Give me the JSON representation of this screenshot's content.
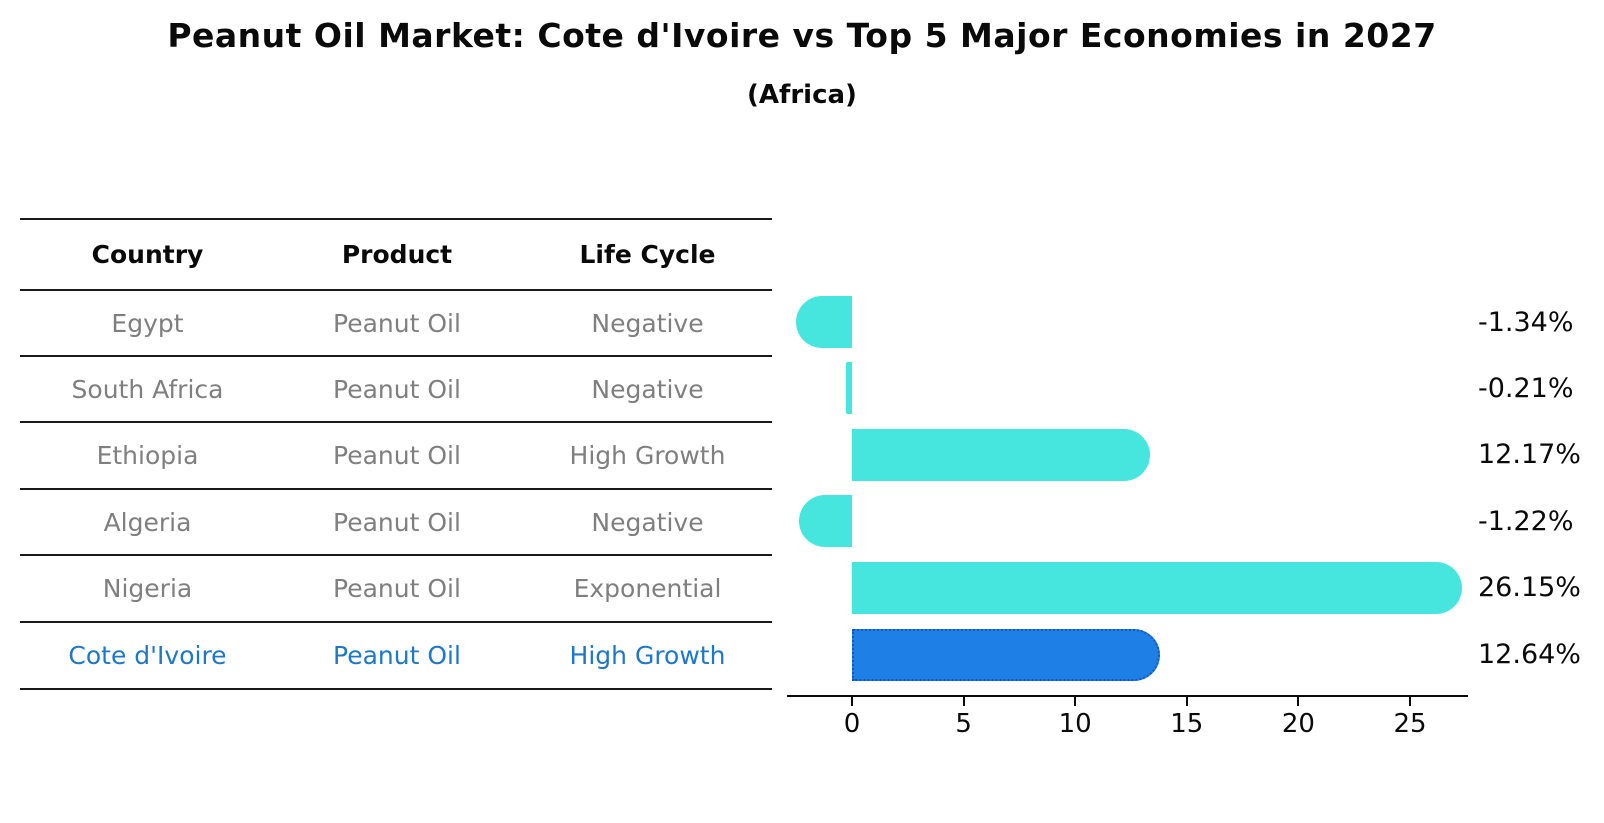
{
  "title": "Peanut Oil Market: Cote d'Ivoire vs Top 5 Major Economies in 2027",
  "subtitle": "(Africa)",
  "table": {
    "headers": [
      "Country",
      "Product",
      "Life Cycle"
    ],
    "rows": [
      {
        "country": "Egypt",
        "product": "Peanut Oil",
        "life_cycle": "Negative",
        "highlight": false
      },
      {
        "country": "South Africa",
        "product": "Peanut Oil",
        "life_cycle": "Negative",
        "highlight": false
      },
      {
        "country": "Ethiopia",
        "product": "Peanut Oil",
        "life_cycle": "High Growth",
        "highlight": false
      },
      {
        "country": "Algeria",
        "product": "Peanut Oil",
        "life_cycle": "Negative",
        "highlight": false
      },
      {
        "country": "Nigeria",
        "product": "Peanut Oil",
        "life_cycle": "Exponential",
        "highlight": false
      },
      {
        "country": "Cote d'Ivoire",
        "product": "Peanut Oil",
        "life_cycle": "High Growth",
        "highlight": true
      }
    ]
  },
  "chart_data": {
    "type": "bar",
    "orientation": "horizontal",
    "categories": [
      "Egypt",
      "South Africa",
      "Ethiopia",
      "Algeria",
      "Nigeria",
      "Cote d'Ivoire"
    ],
    "values": [
      -1.34,
      -0.21,
      12.17,
      -1.22,
      26.15,
      12.64
    ],
    "value_labels": [
      "-1.34%",
      "-0.21%",
      "12.17%",
      "-1.22%",
      "26.15%",
      "12.64%"
    ],
    "x_ticks": [
      0,
      5,
      10,
      15,
      20,
      25
    ],
    "xlim": [
      -3.0,
      27.6
    ],
    "grid": false,
    "legend": false,
    "highlight_index": 5,
    "bar_color": "#46E5DE",
    "highlight_bar_color": "#1E7FE6",
    "highlight_bar_border_color": "#1256C4"
  },
  "colors": {
    "heading_text": "#0a0a0a",
    "body_text": "#7f7f7f",
    "highlight_text": "#1E77C8",
    "table_line": "#1a1a1a",
    "axis": "#0a0a0a"
  }
}
